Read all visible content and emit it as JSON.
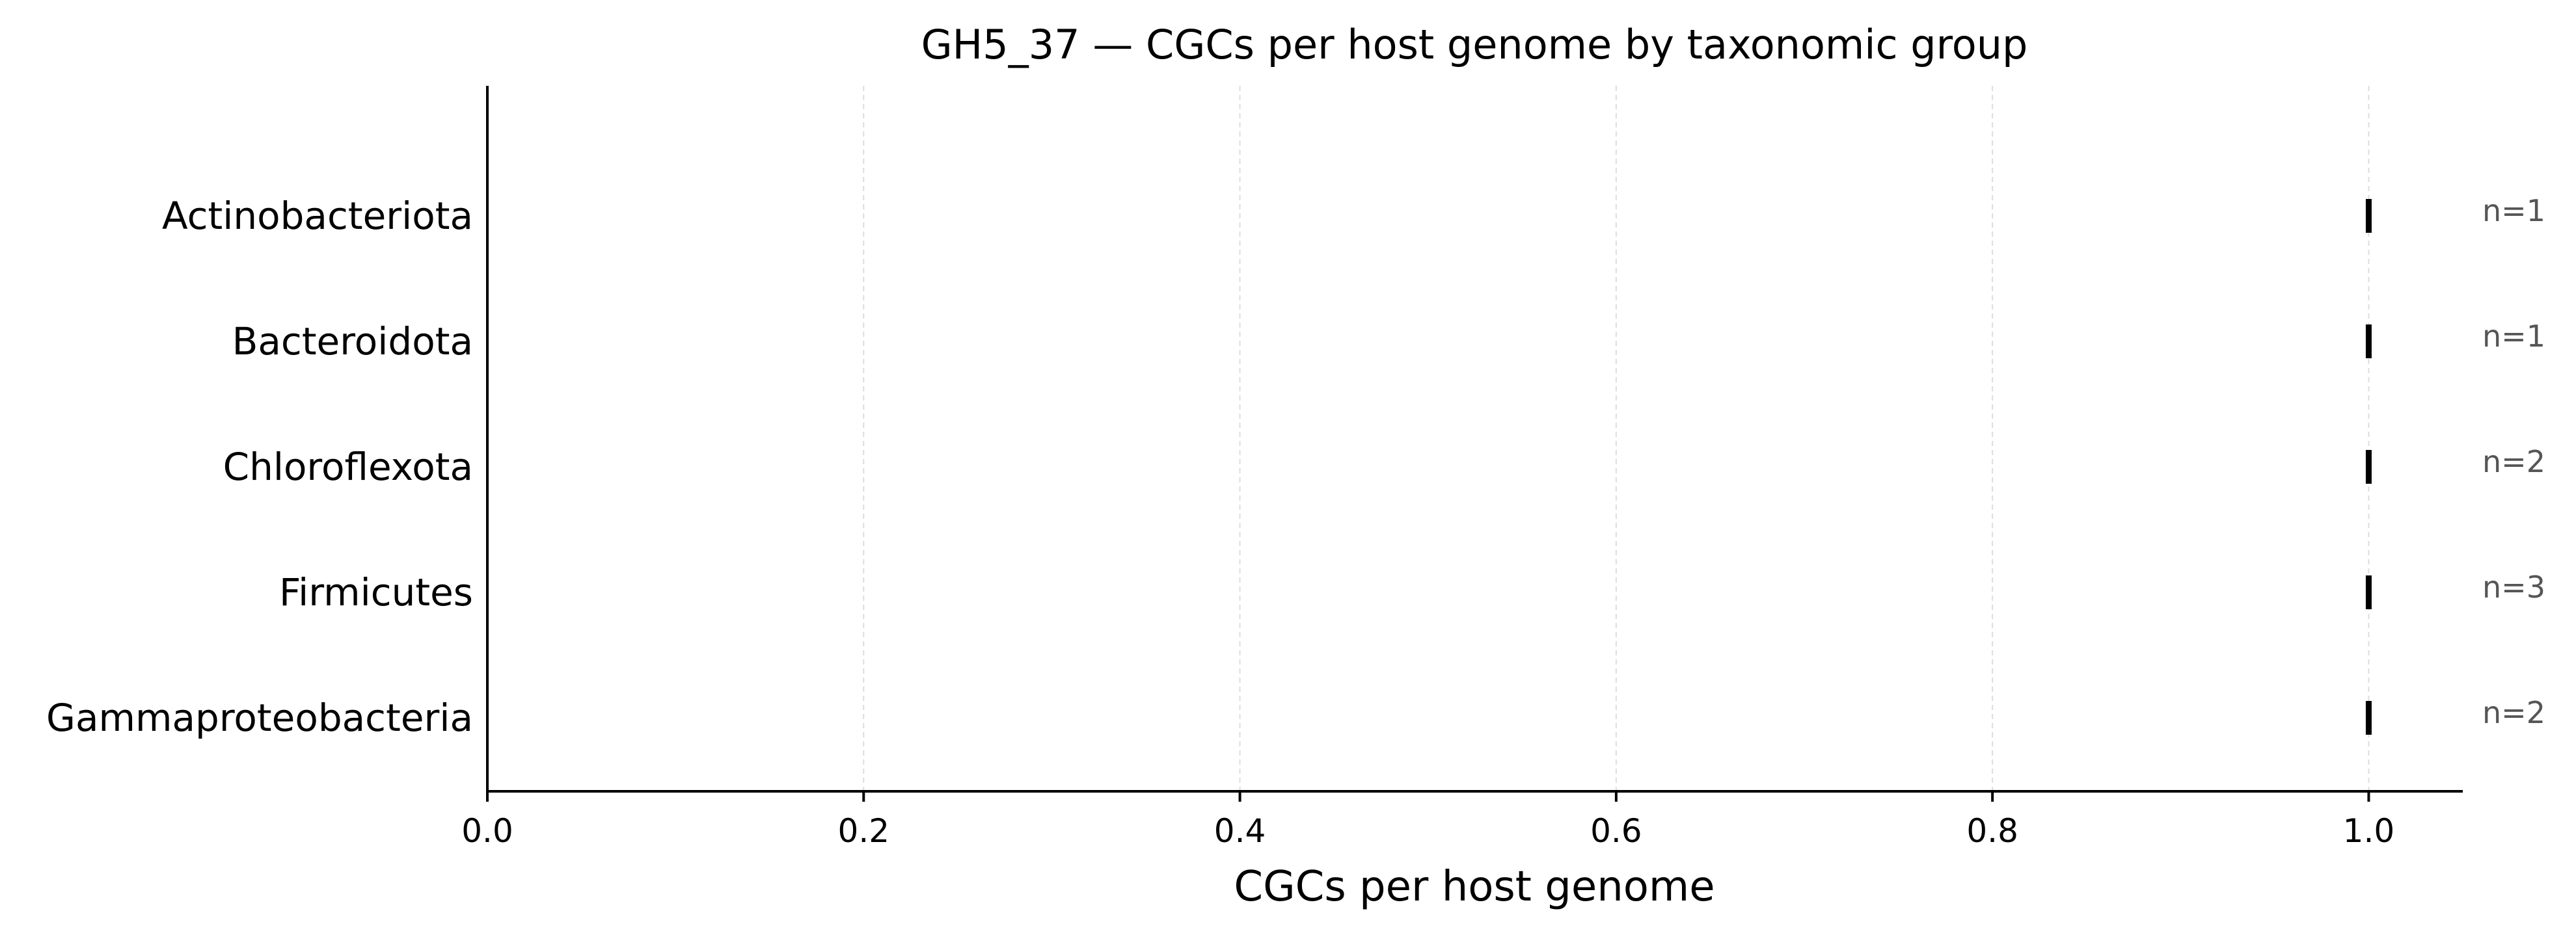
{
  "chart_data": {
    "type": "scatter",
    "title": "GH5_37 — CGCs per host genome by taxonomic group",
    "xlabel": "CGCs per host genome",
    "ylabel": "",
    "xlim": [
      0.0,
      1.05
    ],
    "xticks": [
      0.0,
      0.2,
      0.4,
      0.6,
      0.8,
      1.0
    ],
    "xtick_labels": [
      "0.0",
      "0.2",
      "0.4",
      "0.6",
      "0.8",
      "1.0"
    ],
    "grid": "vertical dashed, light gray",
    "marker": "short vertical line",
    "categories": [
      "Actinobacteriota",
      "Bacteroidota",
      "Chloroflexota",
      "Firmicutes",
      "Gammaproteobacteria"
    ],
    "values": [
      1.0,
      1.0,
      1.0,
      1.0,
      1.0
    ],
    "n_labels": [
      "n=1",
      "n=1",
      "n=2",
      "n=3",
      "n=2"
    ],
    "colors": {
      "marker": "#000000",
      "grid": "#dddddd",
      "axis": "#000000",
      "n_label": "#555555"
    }
  }
}
